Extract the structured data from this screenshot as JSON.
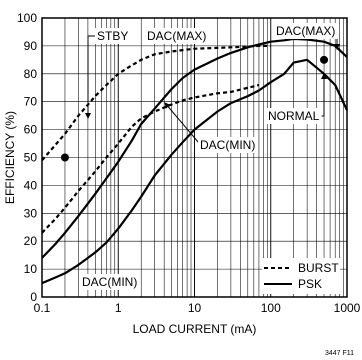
{
  "chart_data": {
    "type": "line",
    "xlabel": "LOAD CURRENT (mA)",
    "ylabel": "EFFICIENCY (%)",
    "x_scale": "log",
    "xlim": [
      0.1,
      1000
    ],
    "ylim": [
      0,
      100
    ],
    "grid": true,
    "legend_position": "bottom-right",
    "x_ticks": [
      "0.1",
      "1",
      "10",
      "100",
      "1000"
    ],
    "y_ticks": [
      "0",
      "10",
      "20",
      "30",
      "40",
      "50",
      "60",
      "70",
      "80",
      "90",
      "100"
    ],
    "figure_id": "3447 F11",
    "legend": [
      {
        "label": "BURST",
        "style": "dashed"
      },
      {
        "label": "PSK",
        "style": "solid"
      }
    ],
    "series": [
      {
        "style": "dashed",
        "x": [
          0.1,
          0.15,
          0.2,
          0.3,
          0.5,
          0.7,
          1,
          1.5,
          2,
          3,
          5,
          7,
          10,
          20,
          30,
          50,
          70,
          100
        ],
        "y": [
          49,
          54.5,
          58.5,
          65,
          72,
          76,
          80,
          83,
          85,
          87,
          88,
          88.5,
          89,
          89.3,
          89.5,
          89.8,
          90,
          90
        ]
      },
      {
        "style": "dashed",
        "x": [
          0.1,
          0.15,
          0.2,
          0.3,
          0.5,
          0.7,
          1,
          1.5,
          2,
          3,
          5,
          7,
          10,
          20,
          30,
          50,
          70
        ],
        "y": [
          23,
          28,
          32,
          38,
          45,
          50,
          55,
          61,
          64,
          66.5,
          69,
          70.5,
          71.5,
          73,
          73.5,
          75,
          76
        ]
      },
      {
        "style": "solid",
        "x": [
          0.1,
          0.15,
          0.2,
          0.3,
          0.5,
          0.7,
          1,
          1.5,
          2,
          3,
          5,
          7,
          10,
          20,
          30,
          50,
          70,
          100,
          150,
          200,
          300,
          500,
          700,
          1000
        ],
        "y": [
          14,
          19,
          23,
          29,
          37,
          42.5,
          48.5,
          56,
          62,
          67.5,
          74.5,
          78.5,
          81.5,
          85.5,
          87.5,
          89.5,
          90.5,
          91.5,
          92,
          92.5,
          92.3,
          91.5,
          90,
          86
        ]
      },
      {
        "style": "solid",
        "x": [
          0.1,
          0.15,
          0.2,
          0.3,
          0.5,
          0.7,
          1,
          1.5,
          2,
          3,
          5,
          7,
          10,
          20,
          30,
          50,
          70,
          100,
          150,
          200,
          300,
          500,
          700,
          1000
        ],
        "y": [
          5,
          7,
          8.5,
          11.5,
          16,
          19.5,
          24.5,
          31,
          36,
          43.5,
          51,
          55.5,
          60,
          66.5,
          69.5,
          72,
          74,
          77,
          80,
          84,
          85,
          80,
          76,
          67
        ]
      }
    ],
    "points": [
      {
        "x": 0.2,
        "y": 50
      },
      {
        "x": 500,
        "y": 85
      }
    ],
    "annotations": [
      {
        "text": "STBY"
      },
      {
        "text": "DAC(MAX)"
      },
      {
        "text": "DAC(MAX)"
      },
      {
        "text": "NORMAL"
      },
      {
        "text": "DAC(MIN)"
      },
      {
        "text": "DAC(MIN)"
      }
    ]
  }
}
